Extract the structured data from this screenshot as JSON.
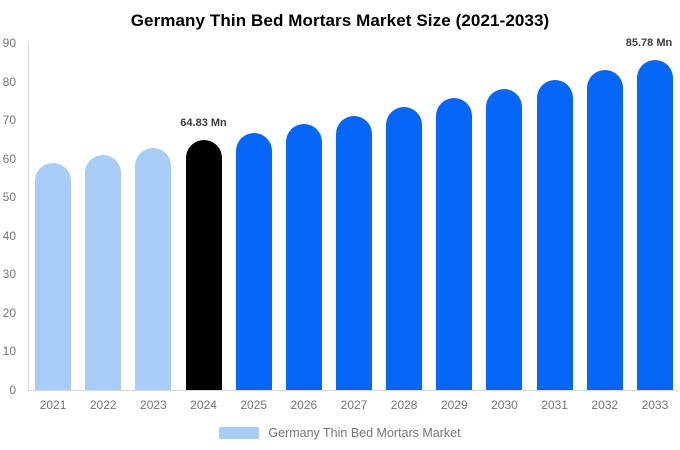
{
  "chart_data": {
    "type": "bar",
    "title": "Germany Thin Bed Mortars Market Size (2021-2033)",
    "unit": "Mn",
    "categories": [
      "2021",
      "2022",
      "2023",
      "2024",
      "2025",
      "2026",
      "2027",
      "2028",
      "2029",
      "2030",
      "2031",
      "2032",
      "2033"
    ],
    "values": [
      59.05,
      60.92,
      62.84,
      64.83,
      66.88,
      68.99,
      71.17,
      73.42,
      75.74,
      78.14,
      80.61,
      83.15,
      85.78
    ],
    "ylim": [
      0,
      90
    ],
    "ytick_step": 10,
    "ytick_labels": [
      "0",
      "10",
      "20",
      "30",
      "40",
      "50",
      "60",
      "70",
      "80",
      "90"
    ],
    "grid": false,
    "background_color": "#ffffff",
    "axis_color": "#d9d9d9",
    "tick_label_color": "#757575",
    "title_color": "#000000",
    "annotation_color": "#3d3d3d",
    "bar_roles": [
      "historical",
      "historical",
      "historical",
      "base-year",
      "forecast",
      "forecast",
      "forecast",
      "forecast",
      "forecast",
      "forecast",
      "forecast",
      "forecast",
      "forecast"
    ],
    "colors": {
      "historical": "#a7ccf6",
      "base-year": "#000000",
      "forecast": "#0666f7"
    },
    "annotations": [
      {
        "category": "2024",
        "label": "64.83 Mn"
      },
      {
        "category": "2033",
        "label": "85.78 Mn"
      }
    ],
    "legend": {
      "label": "Germany Thin Bed Mortars Market",
      "swatch_color": "#a7ccf6",
      "position": "bottom-center"
    }
  }
}
